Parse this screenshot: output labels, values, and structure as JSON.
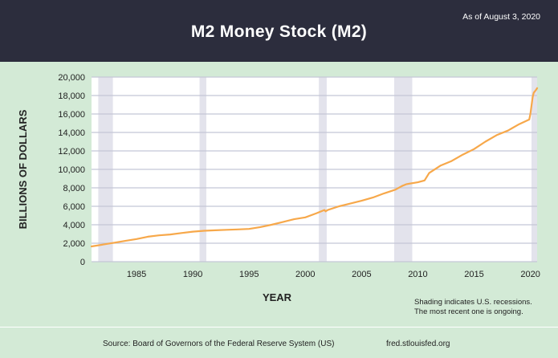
{
  "header": {
    "title": "M2 Money Stock (M2)",
    "as_of": "As of August 3, 2020"
  },
  "footer": {
    "source": "Source: Board of Governors of the Federal Reserve System (US)",
    "site": "fred.stlouisfed.org"
  },
  "note": {
    "line1": "Shading indicates U.S. recessions.",
    "line2": "The most recent one is ongoing."
  },
  "colors": {
    "line": "#f7a84a",
    "recession": "#e3e3ec",
    "grid": "#c4c6d6",
    "header_bg": "#2c2d3d"
  },
  "chart_data": {
    "type": "line",
    "title": "M2 Money Stock (M2)",
    "xlabel": "YEAR",
    "ylabel": "BILLIONS OF DOLLARS",
    "xlim": [
      1981,
      2020.6
    ],
    "ylim": [
      0,
      20000
    ],
    "x_ticks": [
      1985,
      1990,
      1995,
      2000,
      2005,
      2010,
      2015,
      2020
    ],
    "x_tick_labels": [
      "1985",
      "1990",
      "1995",
      "2000",
      "2005",
      "2010",
      "2015",
      "2020"
    ],
    "y_ticks": [
      0,
      2000,
      4000,
      6000,
      8000,
      10000,
      12000,
      14000,
      16000,
      18000,
      20000
    ],
    "y_tick_labels": [
      "0",
      "2,000",
      "4,000",
      "6,000",
      "8,000",
      "10,000",
      "12,000",
      "14,000",
      "16,000",
      "18,000",
      "20,000"
    ],
    "recessions": [
      [
        1981.6,
        1982.9
      ],
      [
        1990.6,
        1991.2
      ],
      [
        2001.2,
        2001.9
      ],
      [
        2007.9,
        2009.5
      ],
      [
        2020.1,
        2020.6
      ]
    ],
    "series": [
      {
        "name": "M2",
        "x": [
          1981.0,
          1982.0,
          1983.0,
          1984.0,
          1985.0,
          1986.0,
          1987.0,
          1988.0,
          1989.0,
          1990.0,
          1991.0,
          1992.0,
          1993.0,
          1994.0,
          1995.0,
          1996.0,
          1997.0,
          1998.0,
          1999.0,
          2000.0,
          2001.0,
          2001.7,
          2001.8,
          2002.0,
          2003.0,
          2004.0,
          2005.0,
          2006.0,
          2007.0,
          2008.0,
          2008.6,
          2009.0,
          2010.0,
          2010.6,
          2011.0,
          2012.0,
          2013.0,
          2014.0,
          2015.0,
          2016.0,
          2017.0,
          2018.0,
          2019.0,
          2019.9,
          2020.0,
          2020.2,
          2020.3,
          2020.5,
          2020.6
        ],
        "values": [
          1650,
          1850,
          2050,
          2250,
          2450,
          2700,
          2850,
          2950,
          3100,
          3250,
          3350,
          3400,
          3450,
          3500,
          3550,
          3750,
          4000,
          4300,
          4600,
          4800,
          5250,
          5600,
          5450,
          5600,
          6000,
          6300,
          6600,
          6950,
          7400,
          7800,
          8200,
          8400,
          8600,
          8800,
          9600,
          10400,
          10900,
          11600,
          12200,
          13000,
          13700,
          14200,
          14900,
          15400,
          16000,
          17800,
          18300,
          18600,
          18800
        ]
      }
    ]
  }
}
